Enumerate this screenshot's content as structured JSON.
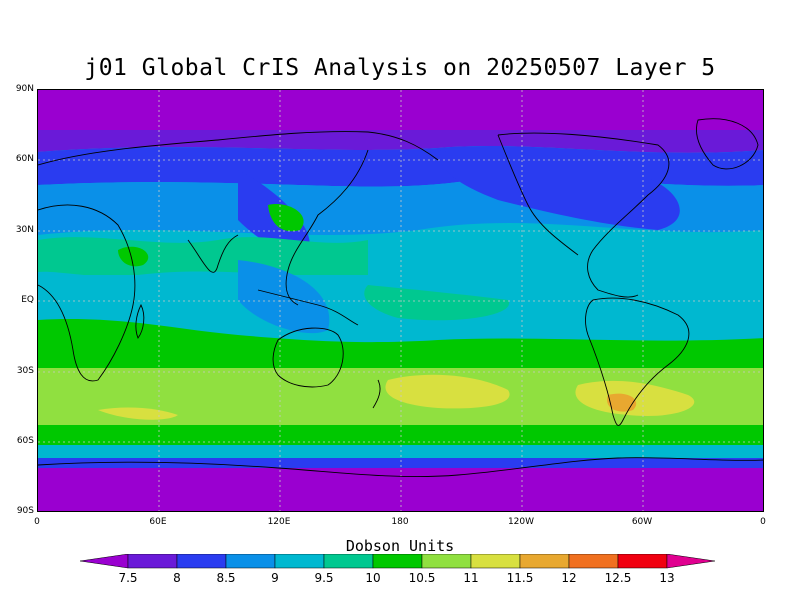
{
  "title": "j01 Global CrIS Analysis on 20250507 Layer 5",
  "lat_labels": [
    "90N",
    "60N",
    "30N",
    "EQ",
    "30S",
    "60S",
    "90S"
  ],
  "lon_labels": [
    "0",
    "60E",
    "120E",
    "180",
    "120W",
    "60W",
    "0"
  ],
  "legend": {
    "title": "Dobson Units",
    "levels": [
      "7.5",
      "8",
      "8.5",
      "9",
      "9.5",
      "10",
      "10.5",
      "11",
      "11.5",
      "12",
      "12.5",
      "13"
    ],
    "colors": [
      "#9a00d0",
      "#6a1ad8",
      "#2a3cf0",
      "#0a90e8",
      "#00b8d0",
      "#00c890",
      "#00c800",
      "#90e040",
      "#d8e040",
      "#e8a830",
      "#f07020",
      "#f00010",
      "#e00090"
    ]
  },
  "colors": {
    "land_outline": "#000000",
    "grid": "#c8c8c8"
  }
}
